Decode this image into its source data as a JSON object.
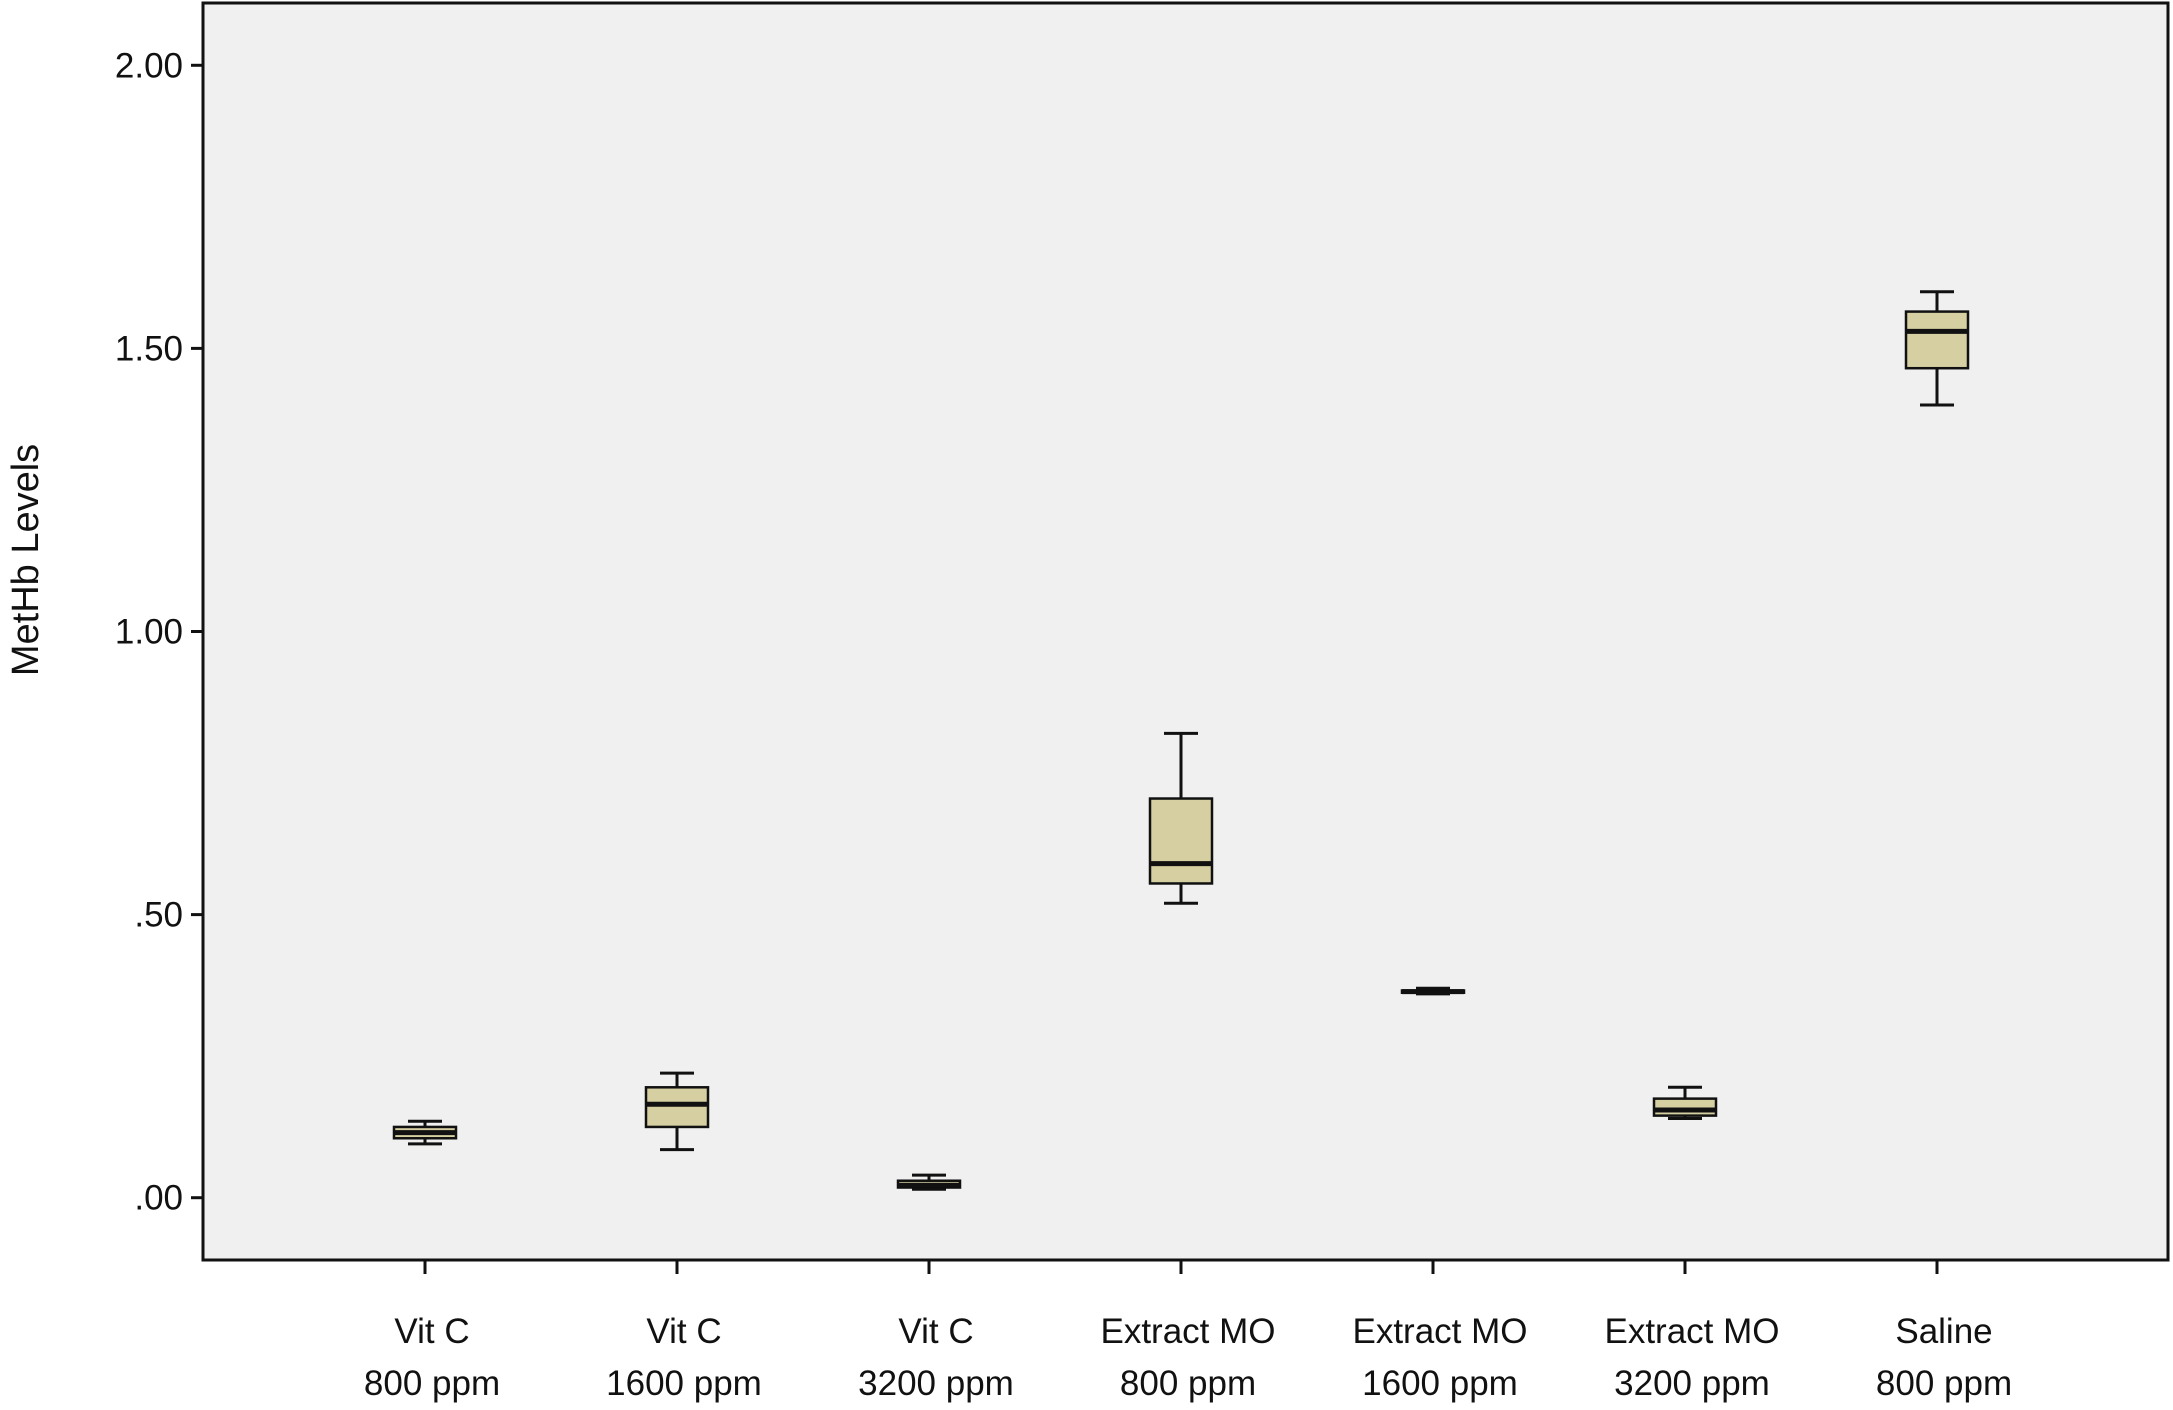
{
  "chart_data": {
    "type": "boxplot",
    "title": "",
    "xlabel": "",
    "ylabel": "MetHb Levels",
    "ylim": [
      -0.11,
      2.11
    ],
    "yticks": [
      {
        "value": 0.0,
        "label": ".00"
      },
      {
        "value": 0.5,
        "label": ".50"
      },
      {
        "value": 1.0,
        "label": "1.00"
      },
      {
        "value": 1.5,
        "label": "1.50"
      },
      {
        "value": 2.0,
        "label": "2.00"
      }
    ],
    "categories": [
      {
        "line1": "Vit C",
        "line2": "800 ppm"
      },
      {
        "line1": "Vit C",
        "line2": "1600 ppm"
      },
      {
        "line1": "Vit C",
        "line2": "3200 ppm"
      },
      {
        "line1": "Extract MO",
        "line2": "800 ppm"
      },
      {
        "line1": "Extract MO",
        "line2": "1600 ppm"
      },
      {
        "line1": "Extract MO",
        "line2": "3200 ppm"
      },
      {
        "line1": "Saline",
        "line2": "800 ppm"
      }
    ],
    "boxes": [
      {
        "min": 0.095,
        "q1": 0.105,
        "median": 0.115,
        "q3": 0.125,
        "max": 0.135
      },
      {
        "min": 0.085,
        "q1": 0.125,
        "median": 0.165,
        "q3": 0.195,
        "max": 0.22
      },
      {
        "min": 0.015,
        "q1": 0.018,
        "median": 0.022,
        "q3": 0.03,
        "max": 0.04
      },
      {
        "min": 0.52,
        "q1": 0.555,
        "median": 0.59,
        "q3": 0.705,
        "max": 0.82
      },
      {
        "min": 0.36,
        "q1": 0.362,
        "median": 0.364,
        "q3": 0.366,
        "max": 0.37
      },
      {
        "min": 0.14,
        "q1": 0.145,
        "median": 0.155,
        "q3": 0.175,
        "max": 0.195
      },
      {
        "min": 1.4,
        "q1": 1.465,
        "median": 1.53,
        "q3": 1.565,
        "max": 1.6
      }
    ],
    "grid": false,
    "legend": "none",
    "colors": {
      "plot_background": "#f0f0f0",
      "box_fill": "#d6cfa1",
      "line": "#111111"
    }
  }
}
